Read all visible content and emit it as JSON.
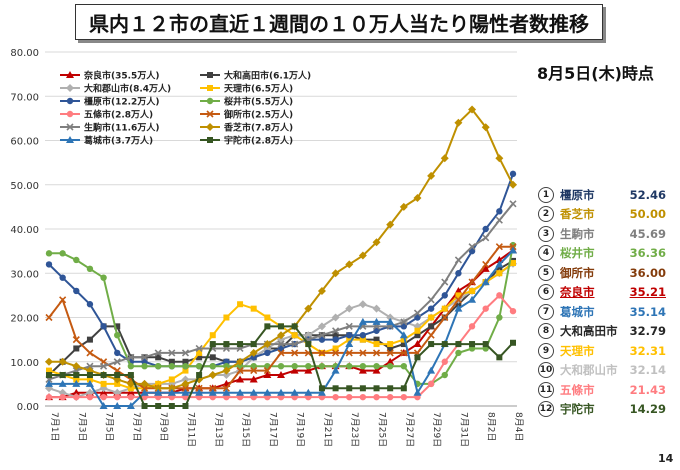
{
  "title": "県内１２市の直近１週間の１０万人当たり陽性者数推移",
  "as_of": "8月5日(木)時点",
  "page_number": "14",
  "chart_data": {
    "type": "line",
    "ylim": [
      0,
      80
    ],
    "yticks": [
      "0.00",
      "10.00",
      "20.00",
      "30.00",
      "40.00",
      "50.00",
      "60.00",
      "70.00",
      "80.00"
    ],
    "x_count": 35,
    "xtick_labels": [
      "7月1日",
      "7月3日",
      "7月5日",
      "7月7日",
      "7月9日",
      "7月11日",
      "7月13日",
      "7月15日",
      "7月17日",
      "7月19日",
      "7月21日",
      "7月23日",
      "7月25日",
      "7月27日",
      "7月29日",
      "7月31日",
      "8月2日",
      "8月4日"
    ],
    "legend": [
      {
        "name": "奈良市(35.5万人)",
        "color": "#c00000",
        "marker": "triangle"
      },
      {
        "name": "大和高田市(6.1万人)",
        "color": "#404040",
        "marker": "square"
      },
      {
        "name": "大和郡山市(8.4万人)",
        "color": "#b0b0b0",
        "marker": "diamond"
      },
      {
        "name": "天理市(6.5万人)",
        "color": "#ffc000",
        "marker": "square"
      },
      {
        "name": "橿原市(12.2万人)",
        "color": "#2f5597",
        "marker": "circle"
      },
      {
        "name": "桜井市(5.5万人)",
        "color": "#70ad47",
        "marker": "circle"
      },
      {
        "name": "五條市(2.8万人)",
        "color": "#ff7c80",
        "marker": "circle"
      },
      {
        "name": "御所市(2.5万人)",
        "color": "#c55a11",
        "marker": "x"
      },
      {
        "name": "生駒市(11.6万人)",
        "color": "#7f7f7f",
        "marker": "x"
      },
      {
        "name": "香芝市(7.8万人)",
        "color": "#bf9000",
        "marker": "diamond"
      },
      {
        "name": "葛城市(3.7万人)",
        "color": "#2e75b6",
        "marker": "triangle"
      },
      {
        "name": "宇陀市(2.8万人)",
        "color": "#375623",
        "marker": "square"
      }
    ],
    "series": [
      {
        "name": "奈良市",
        "color": "#c00000",
        "marker": "triangle",
        "values": [
          2,
          2,
          3,
          3,
          3,
          3,
          3,
          3,
          3,
          3,
          4,
          4,
          4,
          5,
          6,
          6,
          7,
          7,
          8,
          8,
          9,
          9,
          9,
          8,
          8,
          10,
          12,
          14,
          18,
          22,
          26,
          28,
          31,
          33,
          35.21
        ]
      },
      {
        "name": "大和高田市",
        "color": "#404040",
        "marker": "square",
        "values": [
          7,
          10,
          13,
          15,
          18,
          18,
          11,
          11,
          11,
          10,
          10,
          11,
          11,
          10,
          10,
          11,
          13,
          13,
          16,
          16,
          16,
          16,
          16,
          15,
          15,
          13,
          14,
          16,
          18,
          20,
          23,
          26,
          28,
          31,
          32.79
        ]
      },
      {
        "name": "大和郡山市",
        "color": "#b0b0b0",
        "marker": "diamond",
        "values": [
          4,
          3,
          2,
          3,
          4,
          3,
          4,
          5,
          5,
          5,
          6,
          6,
          7,
          7,
          8,
          11,
          13,
          15,
          16,
          16,
          18,
          20,
          22,
          23,
          22,
          20,
          19,
          18,
          20,
          22,
          24,
          26,
          28,
          30,
          32.14
        ]
      },
      {
        "name": "天理市",
        "color": "#ffc000",
        "marker": "square",
        "values": [
          8,
          7,
          6,
          6,
          5,
          5,
          4,
          4,
          5,
          6,
          8,
          12,
          16,
          20,
          23,
          22,
          20,
          18,
          16,
          14,
          12,
          13,
          15,
          15,
          14,
          14,
          15,
          17,
          20,
          22,
          25,
          26,
          28,
          30,
          32.31
        ]
      },
      {
        "name": "橿原市",
        "color": "#2f5597",
        "marker": "circle",
        "values": [
          32,
          29,
          26,
          23,
          18,
          12,
          10,
          10,
          9,
          9,
          9,
          9,
          9,
          10,
          10,
          11,
          12,
          13,
          14,
          15,
          15,
          15,
          16,
          16,
          17,
          18,
          18,
          20,
          22,
          25,
          30,
          35,
          40,
          44,
          52.46
        ]
      },
      {
        "name": "桜井市",
        "color": "#70ad47",
        "marker": "circle",
        "values": [
          34.5,
          34.5,
          33,
          31,
          29,
          16,
          9,
          9,
          9,
          9,
          9,
          9,
          9,
          9,
          9,
          9,
          9,
          9,
          9,
          9,
          9,
          9,
          9,
          9,
          9,
          9,
          9,
          5,
          5,
          7,
          12,
          13,
          13,
          20,
          36.36
        ]
      },
      {
        "name": "五條市",
        "color": "#ff7c80",
        "marker": "circle",
        "values": [
          2,
          2,
          2,
          2,
          2,
          2,
          2,
          2,
          2,
          2,
          2,
          2,
          2,
          2,
          2,
          2,
          2,
          2,
          2,
          2,
          2,
          2,
          2,
          2,
          2,
          2,
          2,
          2,
          5,
          10,
          14,
          18,
          22,
          25,
          21.43
        ]
      },
      {
        "name": "御所市",
        "color": "#c55a11",
        "marker": "x",
        "values": [
          20,
          24,
          15,
          12,
          10,
          8,
          6,
          4,
          4,
          4,
          4,
          4,
          4,
          4,
          8,
          8,
          8,
          12,
          12,
          12,
          12,
          12,
          12,
          12,
          12,
          12,
          12,
          12,
          16,
          20,
          24,
          28,
          32,
          36,
          36
        ]
      },
      {
        "name": "生駒市",
        "color": "#7f7f7f",
        "marker": "x",
        "values": [
          6,
          7,
          8,
          9,
          9,
          10,
          11,
          11,
          12,
          12,
          12,
          13,
          13,
          13,
          13,
          14,
          14,
          14,
          14,
          15,
          16,
          17,
          18,
          18,
          18,
          18,
          19,
          21,
          24,
          28,
          33,
          36,
          38,
          42,
          45.69
        ]
      },
      {
        "name": "香芝市",
        "color": "#bf9000",
        "marker": "diamond",
        "values": [
          10,
          10,
          9,
          8,
          7,
          6,
          5,
          5,
          4,
          4,
          5,
          6,
          7,
          8,
          10,
          12,
          14,
          16,
          18,
          22,
          26,
          30,
          32,
          34,
          37,
          41,
          45,
          47,
          52,
          56,
          64,
          67,
          63,
          56,
          50
        ]
      },
      {
        "name": "葛城市",
        "color": "#2e75b6",
        "marker": "triangle",
        "values": [
          5,
          5,
          5,
          5,
          0,
          0,
          0,
          3,
          3,
          3,
          3,
          3,
          3,
          3,
          3,
          3,
          3,
          3,
          3,
          3,
          3,
          8,
          14,
          19,
          19,
          19,
          16,
          3,
          8,
          14,
          22,
          24,
          28,
          32,
          35.14
        ]
      },
      {
        "name": "宇陀市",
        "color": "#375623",
        "marker": "square",
        "values": [
          7,
          7,
          7,
          7,
          7,
          7,
          7,
          0,
          0,
          0,
          0,
          7,
          14,
          14,
          14,
          14,
          18,
          18,
          18,
          14,
          4,
          4,
          4,
          4,
          4,
          4,
          4,
          11,
          14,
          14,
          14,
          14,
          14,
          11,
          14.29
        ]
      }
    ]
  },
  "ranking": [
    {
      "num": "1",
      "name": "橿原市",
      "value": "52.46",
      "color": "#1f3864"
    },
    {
      "num": "2",
      "name": "香芝市",
      "value": "50.00",
      "color": "#bf9000"
    },
    {
      "num": "3",
      "name": "生駒市",
      "value": "45.69",
      "color": "#7f7f7f"
    },
    {
      "num": "4",
      "name": "桜井市",
      "value": "36.36",
      "color": "#70ad47"
    },
    {
      "num": "5",
      "name": "御所市",
      "value": "36.00",
      "color": "#843c0c"
    },
    {
      "num": "6",
      "name": "奈良市",
      "value": "35.21",
      "color": "#c00000"
    },
    {
      "num": "7",
      "name": "葛城市",
      "value": "35.14",
      "color": "#2e75b6"
    },
    {
      "num": "8",
      "name": "大和高田市",
      "value": "32.79",
      "color": "#262626"
    },
    {
      "num": "9",
      "name": "天理市",
      "value": "32.31",
      "color": "#ffc000"
    },
    {
      "num": "10",
      "name": "大和郡山市",
      "value": "32.14",
      "color": "#c0c0c0"
    },
    {
      "num": "11",
      "name": "五條市",
      "value": "21.43",
      "color": "#ff7c80"
    },
    {
      "num": "12",
      "name": "宇陀市",
      "value": "14.29",
      "color": "#375623"
    }
  ]
}
